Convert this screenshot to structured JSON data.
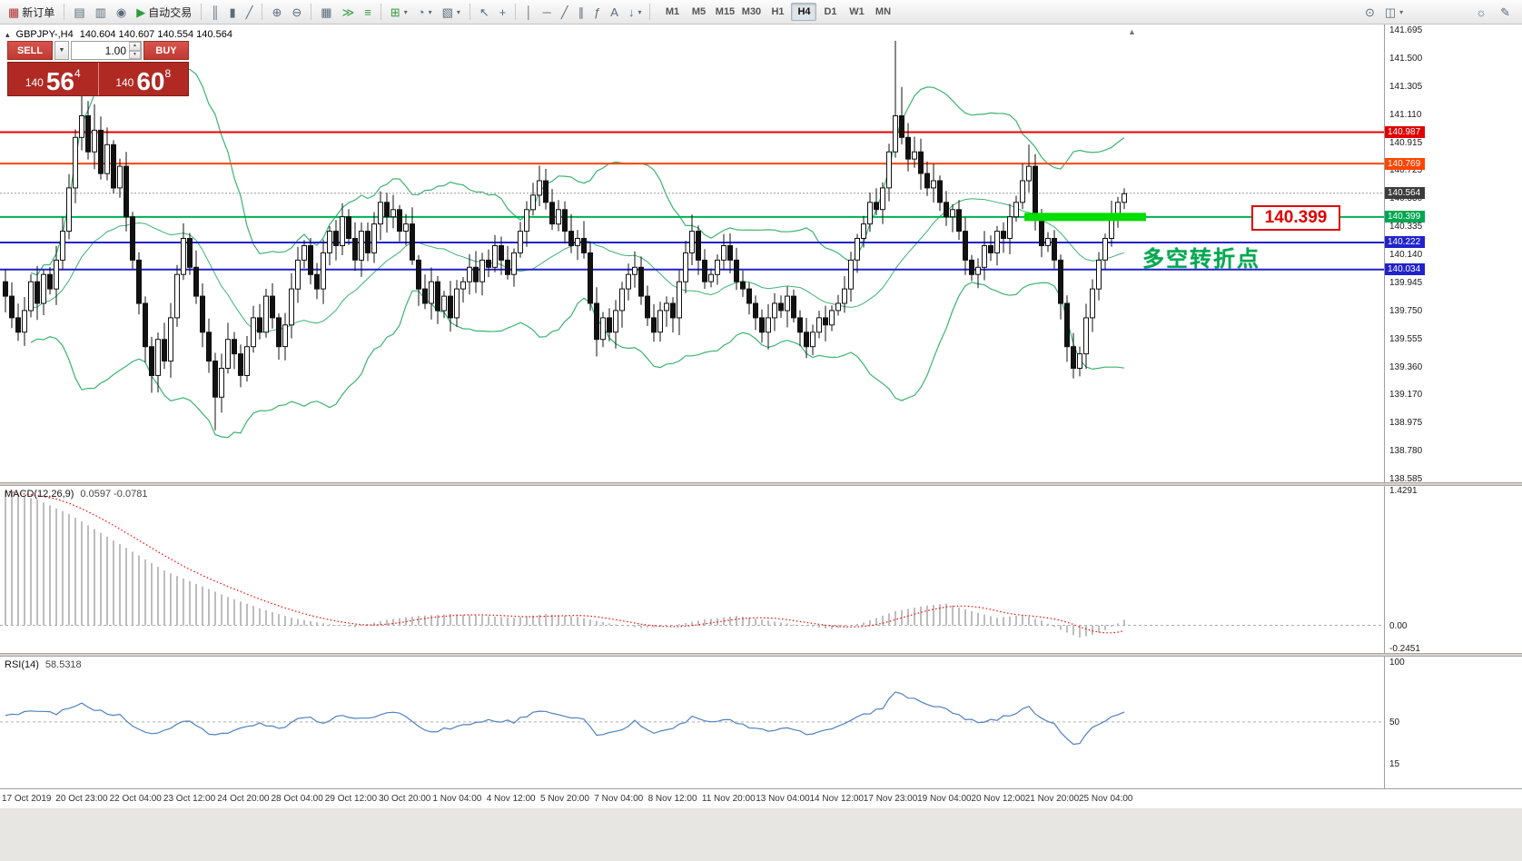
{
  "toolbar": {
    "groups": [
      {
        "buttons": [
          {
            "name": "new-order-button",
            "glyph": "▦",
            "color": "#b03030",
            "label": "新订单"
          }
        ]
      },
      {
        "buttons": [
          {
            "name": "market-watch-button",
            "glyph": "▤"
          },
          {
            "name": "data-window-button",
            "glyph": "▥"
          },
          {
            "name": "navigator-button",
            "glyph": "◉"
          },
          {
            "name": "auto-trading-button",
            "glyph": "▶",
            "color": "#2e9b3e",
            "label": "自动交易"
          }
        ]
      },
      {
        "buttons": [
          {
            "name": "bar-chart-button",
            "glyph": "║"
          },
          {
            "name": "candlestick-chart-button",
            "glyph": "▮"
          },
          {
            "name": "line-chart-button",
            "glyph": "╱"
          }
        ]
      },
      {
        "buttons": [
          {
            "name": "zoom-in-button",
            "glyph": "⊕"
          },
          {
            "name": "zoom-out-button",
            "glyph": "⊖"
          }
        ]
      },
      {
        "buttons": [
          {
            "name": "tile-windows-button",
            "glyph": "▦"
          },
          {
            "name": "auto-scroll-button",
            "glyph": "≫",
            "color": "#2e9b3e"
          },
          {
            "name": "chart-shift-button",
            "glyph": "≡",
            "color": "#2e9b3e"
          }
        ]
      },
      {
        "buttons": [
          {
            "name": "indicators-button",
            "glyph": "⊞",
            "color": "#2e9b3e",
            "dropdown": true
          },
          {
            "name": "periods-button",
            "glyph": "◔",
            "dropdown": true
          },
          {
            "name": "templates-button",
            "glyph": "▧",
            "dropdown": true
          }
        ]
      },
      {
        "buttons": [
          {
            "name": "cursor-button",
            "glyph": "↖"
          },
          {
            "name": "crosshair-button",
            "glyph": "+"
          }
        ]
      },
      {
        "buttons": [
          {
            "name": "vertical-line-button",
            "glyph": "│"
          },
          {
            "name": "horizontal-line-button",
            "glyph": "─"
          },
          {
            "name": "trendline-button",
            "glyph": "╱"
          },
          {
            "name": "equidistant-channel-button",
            "glyph": "∥"
          },
          {
            "name": "fibonacci-button",
            "glyph": "ƒ"
          },
          {
            "name": "text-button",
            "glyph": "A"
          },
          {
            "name": "arrow-objects-button",
            "glyph": "↓",
            "dropdown": true
          }
        ]
      }
    ],
    "timeframes": {
      "items": [
        "M1",
        "M5",
        "M15",
        "M30",
        "H1",
        "H4",
        "D1",
        "W1",
        "MN"
      ],
      "active": "H4"
    },
    "right_buttons": [
      {
        "name": "search-button",
        "glyph": "⊙"
      },
      {
        "name": "window-layout-button",
        "glyph": "◫",
        "dropdown": true
      }
    ],
    "far_right_buttons": [
      {
        "name": "ideas-button",
        "glyph": "☼"
      },
      {
        "name": "note-button",
        "glyph": "✎"
      }
    ]
  },
  "chart": {
    "symbol_period": "GBPJPY-,H4",
    "ohlc": "140.604 140.607 140.554 140.564",
    "icons": {
      "symbol": "▴",
      "dropdown": "▼",
      "dropdown_small": "▾",
      "spin_up": "▲",
      "spin_down": "▼",
      "scroll_marker": "▲"
    },
    "trade": {
      "sell_label": "SELL",
      "buy_label": "BUY",
      "volume": "1.00",
      "price_prefix": "140",
      "sell_big": "56",
      "sell_sup": "4",
      "buy_big": "60",
      "buy_sup": "8"
    },
    "annotations": {
      "callout": "140.399",
      "note": "多空转折点"
    },
    "axis_tags": [
      {
        "text": "140.987",
        "color": "#e00000"
      },
      {
        "text": "140.769",
        "color": "#ff4500"
      },
      {
        "text": "140.564",
        "color": "#3c3c3c"
      },
      {
        "text": "140.399",
        "color": "#00a651"
      },
      {
        "text": "140.222",
        "color": "#2222cc"
      },
      {
        "text": "140.034",
        "color": "#2222cc"
      }
    ]
  },
  "chart_data": [
    {
      "type": "candlestick",
      "symbol": "GBPJPY-",
      "period": "H4",
      "y_range": [
        138.585,
        141.695
      ],
      "y_ticks": [
        "141.695",
        "141.500",
        "141.305",
        "141.110",
        "140.915",
        "140.725",
        "140.530",
        "140.335",
        "140.140",
        "139.945",
        "139.750",
        "139.555",
        "139.360",
        "139.170",
        "138.975",
        "138.780",
        "138.585"
      ],
      "closes": [
        139.85,
        139.7,
        139.6,
        139.75,
        139.95,
        139.8,
        140.0,
        139.9,
        140.1,
        140.3,
        140.6,
        140.95,
        141.1,
        140.85,
        141.0,
        140.7,
        140.9,
        140.6,
        140.75,
        140.4,
        140.1,
        139.8,
        139.5,
        139.3,
        139.55,
        139.4,
        139.7,
        140.0,
        140.25,
        140.05,
        139.85,
        139.6,
        139.4,
        139.15,
        139.35,
        139.55,
        139.45,
        139.3,
        139.5,
        139.7,
        139.6,
        139.85,
        139.7,
        139.5,
        139.65,
        139.9,
        140.1,
        140.2,
        140.0,
        139.9,
        140.15,
        140.3,
        140.2,
        140.4,
        140.25,
        140.1,
        140.3,
        140.15,
        140.35,
        140.5,
        140.4,
        140.45,
        140.3,
        140.35,
        140.1,
        139.9,
        139.8,
        139.95,
        139.75,
        139.85,
        139.7,
        139.9,
        139.95,
        140.05,
        139.95,
        140.1,
        140.05,
        140.2,
        140.1,
        140.0,
        140.15,
        140.3,
        140.45,
        140.55,
        140.65,
        140.5,
        140.35,
        140.45,
        140.3,
        140.2,
        140.25,
        140.15,
        139.8,
        139.55,
        139.7,
        139.6,
        139.75,
        139.9,
        140.0,
        140.05,
        139.85,
        139.7,
        139.6,
        139.75,
        139.8,
        139.7,
        139.95,
        140.15,
        140.3,
        140.1,
        139.95,
        140.0,
        140.1,
        140.2,
        140.1,
        139.95,
        139.9,
        139.8,
        139.7,
        139.6,
        139.7,
        139.8,
        139.75,
        139.85,
        139.7,
        139.6,
        139.5,
        139.6,
        139.7,
        139.65,
        139.75,
        139.8,
        139.9,
        140.1,
        140.25,
        140.35,
        140.5,
        140.45,
        140.6,
        140.85,
        141.1,
        140.95,
        140.8,
        140.85,
        140.7,
        140.6,
        140.65,
        140.5,
        140.4,
        140.45,
        140.3,
        140.1,
        140.0,
        140.05,
        140.2,
        140.15,
        140.3,
        140.25,
        140.4,
        140.5,
        140.65,
        140.75,
        140.4,
        140.2,
        140.25,
        140.1,
        139.8,
        139.5,
        139.35,
        139.45,
        139.7,
        139.9,
        140.1,
        140.25,
        140.4,
        140.5,
        140.56
      ],
      "spike_highs": {
        "12": 141.25,
        "14": 141.18,
        "140": 141.62,
        "141": 141.3,
        "161": 140.9
      },
      "spike_lows": {
        "23": 139.18,
        "33": 138.92,
        "126": 139.42,
        "168": 139.28
      },
      "bollinger": {
        "period": 20,
        "deviation": 2,
        "color": "#3cb371"
      },
      "hlines": [
        {
          "price": 140.987,
          "color": "#ee0000",
          "width": 2
        },
        {
          "price": 140.769,
          "color": "#ff4500",
          "width": 2
        },
        {
          "price": 140.399,
          "color": "#00b050",
          "width": 2
        },
        {
          "price": 140.222,
          "color": "#2222cc",
          "width": 2
        },
        {
          "price": 140.034,
          "color": "#2222cc",
          "width": 2
        }
      ],
      "current_price": 140.564,
      "highlight_segment": {
        "price": 140.399,
        "x_from": 1128,
        "x_to": 1262,
        "color": "#00dd00",
        "width": 9
      }
    },
    {
      "type": "bar",
      "name": "MACD(12,26,9)",
      "values": "0.0597 -0.0781",
      "y_range": [
        -0.2451,
        1.4291
      ],
      "y_ticks": [
        "1.4291",
        "0.00",
        "-0.2451"
      ],
      "bar_color": "#bdbdbd",
      "signal_color": "#ff0000",
      "hist_anchors": [
        [
          0,
          1.42
        ],
        [
          5,
          1.33
        ],
        [
          10,
          1.18
        ],
        [
          15,
          0.98
        ],
        [
          20,
          0.78
        ],
        [
          25,
          0.58
        ],
        [
          30,
          0.44
        ],
        [
          35,
          0.3
        ],
        [
          40,
          0.18
        ],
        [
          45,
          0.08
        ],
        [
          50,
          0.02
        ],
        [
          55,
          -0.02
        ],
        [
          60,
          0.06
        ],
        [
          65,
          0.1
        ],
        [
          70,
          0.12
        ],
        [
          75,
          0.1
        ],
        [
          80,
          0.08
        ],
        [
          85,
          0.12
        ],
        [
          90,
          0.09
        ],
        [
          95,
          0.02
        ],
        [
          100,
          -0.03
        ],
        [
          105,
          0.0
        ],
        [
          110,
          0.06
        ],
        [
          115,
          0.1
        ],
        [
          120,
          0.05
        ],
        [
          125,
          0.0
        ],
        [
          130,
          -0.04
        ],
        [
          135,
          0.03
        ],
        [
          140,
          0.15
        ],
        [
          145,
          0.21
        ],
        [
          148,
          0.23
        ],
        [
          152,
          0.15
        ],
        [
          156,
          0.08
        ],
        [
          160,
          0.11
        ],
        [
          163,
          0.05
        ],
        [
          166,
          -0.05
        ],
        [
          169,
          -0.13
        ],
        [
          171,
          -0.1
        ],
        [
          173,
          -0.05
        ],
        [
          175,
          0.02
        ],
        [
          176,
          0.06
        ]
      ]
    },
    {
      "type": "line",
      "name": "RSI(14)",
      "value": "58.5318",
      "y_ticks": [
        "100",
        "50",
        "15"
      ],
      "levels": [
        50
      ],
      "line_color": "#4f81bd",
      "anchors": [
        [
          0,
          55
        ],
        [
          3,
          58
        ],
        [
          5,
          60
        ],
        [
          8,
          57
        ],
        [
          10,
          62
        ],
        [
          12,
          65
        ],
        [
          14,
          60
        ],
        [
          16,
          58
        ],
        [
          18,
          55
        ],
        [
          20,
          48
        ],
        [
          23,
          40
        ],
        [
          26,
          45
        ],
        [
          28,
          52
        ],
        [
          31,
          44
        ],
        [
          33,
          38
        ],
        [
          36,
          42
        ],
        [
          40,
          48
        ],
        [
          44,
          45
        ],
        [
          47,
          55
        ],
        [
          50,
          50
        ],
        [
          53,
          56
        ],
        [
          57,
          52
        ],
        [
          60,
          58
        ],
        [
          63,
          55
        ],
        [
          65,
          45
        ],
        [
          68,
          42
        ],
        [
          72,
          48
        ],
        [
          76,
          52
        ],
        [
          80,
          50
        ],
        [
          84,
          60
        ],
        [
          88,
          55
        ],
        [
          91,
          52
        ],
        [
          93,
          38
        ],
        [
          96,
          42
        ],
        [
          99,
          50
        ],
        [
          102,
          42
        ],
        [
          105,
          45
        ],
        [
          108,
          54
        ],
        [
          111,
          50
        ],
        [
          114,
          52
        ],
        [
          117,
          46
        ],
        [
          120,
          42
        ],
        [
          123,
          46
        ],
        [
          126,
          40
        ],
        [
          129,
          44
        ],
        [
          132,
          48
        ],
        [
          135,
          56
        ],
        [
          138,
          62
        ],
        [
          140,
          75
        ],
        [
          142,
          70
        ],
        [
          144,
          68
        ],
        [
          147,
          62
        ],
        [
          150,
          56
        ],
        [
          153,
          48
        ],
        [
          156,
          52
        ],
        [
          159,
          58
        ],
        [
          161,
          64
        ],
        [
          163,
          52
        ],
        [
          165,
          48
        ],
        [
          167,
          35
        ],
        [
          168,
          30
        ],
        [
          169,
          33
        ],
        [
          171,
          45
        ],
        [
          173,
          52
        ],
        [
          175,
          57
        ],
        [
          176,
          58.5
        ]
      ]
    }
  ],
  "time_axis": {
    "labels": [
      "17 Oct 2019",
      "20 Oct 23:00",
      "22 Oct 04:00",
      "23 Oct 12:00",
      "24 Oct 20:00",
      "28 Oct 04:00",
      "29 Oct 12:00",
      "30 Oct 20:00",
      "1 Nov 04:00",
      "4 Nov 12:00",
      "5 Nov 20:00",
      "7 Nov 04:00",
      "8 Nov 12:00",
      "11 Nov 20:00",
      "13 Nov 04:00",
      "14 Nov 12:00",
      "17 Nov 23:00",
      "19 Nov 04:00",
      "20 Nov 12:00",
      "21 Nov 20:00",
      "25 Nov 04:00"
    ]
  }
}
